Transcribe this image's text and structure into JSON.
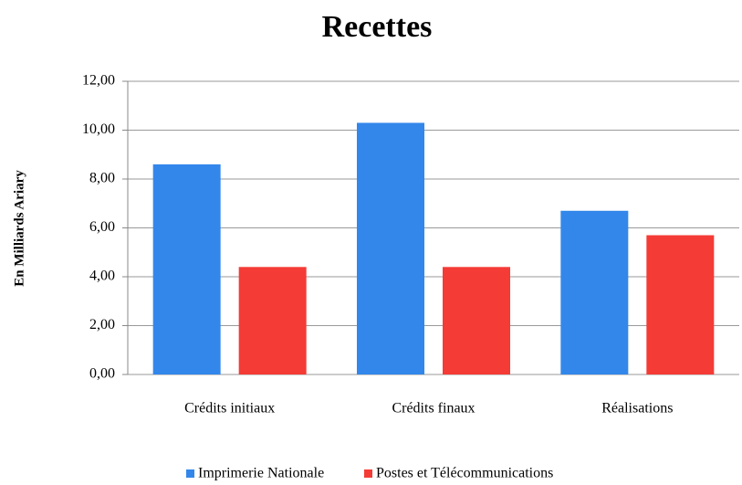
{
  "chart_data": {
    "type": "bar",
    "title": "Recettes",
    "y_label": "En Milliards Ariary",
    "categories": [
      "Crédits initiaux",
      "Crédits finaux",
      "Réalisations"
    ],
    "series": [
      {
        "name": "Imprimerie Nationale",
        "color": "#3387ea",
        "values": [
          8.6,
          10.3,
          6.7
        ]
      },
      {
        "name": "Postes et Télécommunications",
        "color": "#f43b36",
        "values": [
          4.4,
          4.4,
          5.7
        ]
      }
    ],
    "ylim": [
      0,
      12
    ],
    "yticks": [
      {
        "value": 0,
        "label": "0,00"
      },
      {
        "value": 2,
        "label": "2,00"
      },
      {
        "value": 4,
        "label": "4,00"
      },
      {
        "value": 6,
        "label": "6,00"
      },
      {
        "value": 8,
        "label": "8,00"
      },
      {
        "value": 10,
        "label": "10,00"
      },
      {
        "value": 12,
        "label": "12,00"
      }
    ],
    "grid": true,
    "legend": "bottom"
  }
}
